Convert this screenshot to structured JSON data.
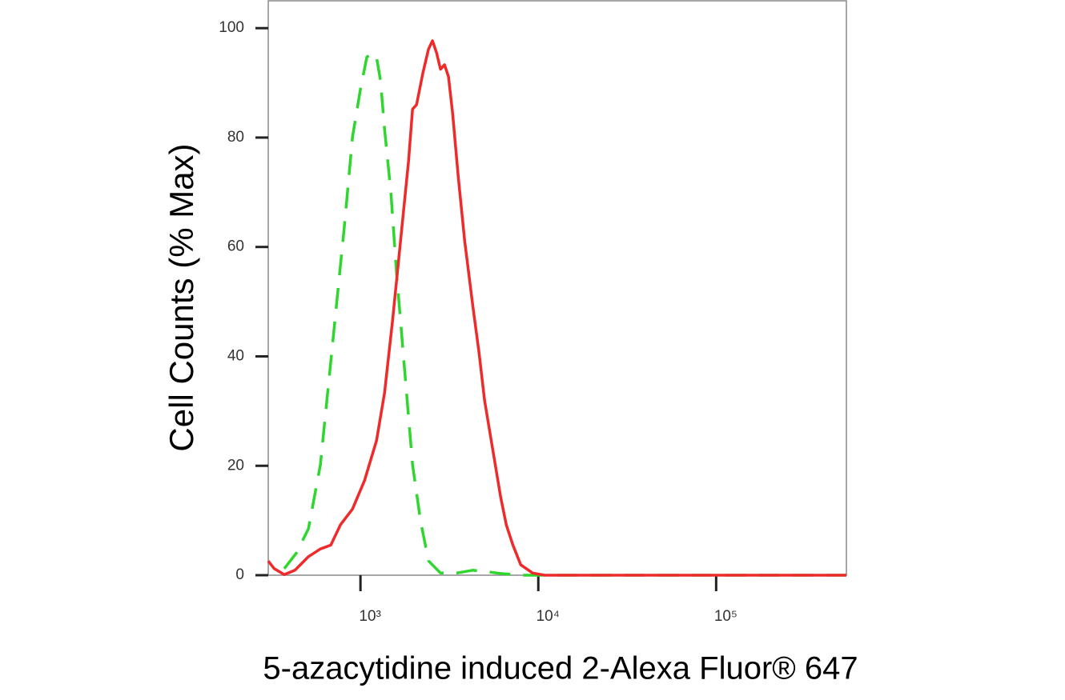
{
  "chart_data": {
    "type": "line",
    "y_label": "Cell Counts (% Max)",
    "x_label": "5-azacytidine induced 2-Alexa Fluor® 647",
    "xscale": "log",
    "xlim": [
      303,
      540000
    ],
    "ylim": [
      0,
      105
    ],
    "xticks": [
      {
        "value": 1000,
        "label": "10³"
      },
      {
        "value": 10000,
        "label": "10⁴"
      },
      {
        "value": 100000,
        "label": "10⁵"
      }
    ],
    "yticks": [
      0,
      20,
      40,
      60,
      80,
      100
    ],
    "series": [
      {
        "color": "#ee2a2a",
        "dash": false,
        "x": [
          303,
          327,
          373,
          428,
          510,
          595,
          681,
          771,
          902,
          1054,
          1231,
          1365,
          1514,
          1680,
          1863,
          1963,
          2066,
          2244,
          2415,
          2541,
          2679,
          2818,
          2972,
          3126,
          3296,
          3548,
          3855,
          4276,
          4645,
          4990,
          5534,
          6138,
          6607,
          7178,
          7962,
          9290,
          10860,
          540000
        ],
        "values": [
          2.6,
          1.2,
          0.1,
          0.9,
          3.4,
          4.8,
          5.5,
          9.2,
          12.1,
          17.3,
          24.6,
          33.3,
          46.5,
          61.1,
          75.7,
          85.2,
          86,
          91.8,
          96.2,
          97.7,
          95.5,
          92.5,
          93.3,
          91.1,
          84.5,
          72.8,
          61.1,
          49.4,
          40.6,
          31.9,
          23.1,
          14.3,
          9.2,
          5.6,
          1.9,
          0.4,
          0,
          0
        ]
      },
      {
        "color": "#2ed62e",
        "dash": true,
        "x": [
          373,
          437,
          510,
          595,
          696,
          813,
          902,
          1000,
          1086,
          1169,
          1231,
          1296,
          1365,
          1483,
          1595,
          1770,
          1963,
          2177,
          2415,
          2818,
          3474,
          4276,
          5260,
          6138,
          7962,
          540000
        ],
        "values": [
          1.2,
          4.1,
          8.5,
          20.2,
          42.1,
          64,
          80.1,
          88.9,
          94.7,
          95.5,
          94.7,
          90.4,
          81.6,
          69.9,
          55.3,
          37.7,
          20.2,
          9.9,
          2.6,
          0.4,
          0.4,
          0.9,
          0.6,
          0.3,
          0,
          0
        ]
      }
    ]
  }
}
